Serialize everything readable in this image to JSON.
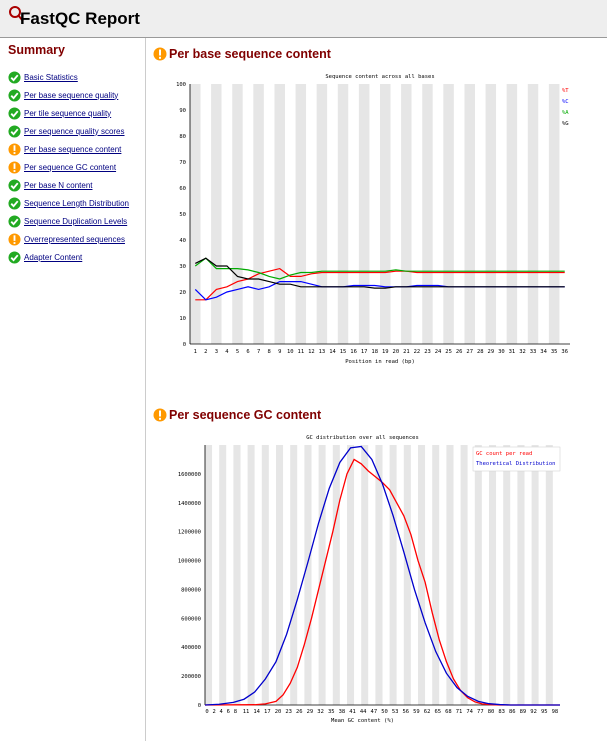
{
  "app": {
    "title": "FastQC Report"
  },
  "sidebar": {
    "title": "Summary",
    "items": [
      {
        "label": "Basic Statistics",
        "status": "pass"
      },
      {
        "label": "Per base sequence quality",
        "status": "pass"
      },
      {
        "label": "Per tile sequence quality",
        "status": "pass"
      },
      {
        "label": "Per sequence quality scores",
        "status": "pass"
      },
      {
        "label": "Per base sequence content",
        "status": "warn"
      },
      {
        "label": "Per sequence GC content",
        "status": "warn"
      },
      {
        "label": "Per base N content",
        "status": "pass"
      },
      {
        "label": "Sequence Length Distribution",
        "status": "pass"
      },
      {
        "label": "Sequence Duplication Levels",
        "status": "pass"
      },
      {
        "label": "Overrepresented sequences",
        "status": "warn"
      },
      {
        "label": "Adapter Content",
        "status": "pass"
      }
    ]
  },
  "colors": {
    "pass": "#22aa22",
    "warn": "#ff9900",
    "heading": "#800000",
    "link": "#000080"
  },
  "sections": [
    {
      "title": "Per base sequence content",
      "status": "warn",
      "icon": "warning-icon"
    },
    {
      "title": "Per sequence GC content",
      "status": "warn",
      "icon": "warning-icon"
    }
  ],
  "chart_data": [
    {
      "type": "line",
      "title": "Sequence content across all bases",
      "xlabel": "Position in read (bp)",
      "ylabel": "",
      "ylim": [
        0,
        100
      ],
      "yticks": [
        0,
        10,
        20,
        30,
        40,
        50,
        60,
        70,
        80,
        90,
        100
      ],
      "x": [
        "1",
        "2",
        "3",
        "4",
        "5",
        "6",
        "7",
        "8",
        "9",
        "10",
        "11",
        "12",
        "13",
        "14",
        "15",
        "16",
        "17",
        "18",
        "19",
        "20",
        "21",
        "22",
        "23",
        "24",
        "25",
        "26",
        "27",
        "28",
        "29",
        "30",
        "31",
        "32",
        "33",
        "34",
        "35",
        "36"
      ],
      "grid": "alternating vertical bands",
      "legend": "top-right",
      "series": [
        {
          "name": "%T",
          "color": "#ff0000",
          "values": [
            17,
            17,
            21,
            22,
            24,
            25,
            27,
            28,
            29,
            26,
            26,
            27,
            27.5,
            27.5,
            27.5,
            27.5,
            27.5,
            27.5,
            27.5,
            28,
            28,
            27.5,
            27.5,
            27.5,
            27.5,
            27.5,
            27.5,
            27.5,
            27.5,
            27.5,
            27.5,
            27.5,
            27.5,
            27.5,
            27.5,
            27.5
          ]
        },
        {
          "name": "%C",
          "color": "#0000ff",
          "values": [
            21,
            17,
            18,
            20,
            21,
            22,
            21,
            22,
            24,
            24,
            24,
            23,
            22,
            22,
            22,
            22.5,
            22.5,
            22.5,
            22,
            22,
            22,
            22.5,
            22.5,
            22.5,
            22,
            22,
            22,
            22,
            22,
            22,
            22,
            22,
            22,
            22,
            22,
            22
          ]
        },
        {
          "name": "%A",
          "color": "#00aa00",
          "values": [
            30,
            33,
            29,
            29,
            29,
            28.5,
            27.5,
            26,
            25,
            26.5,
            27.5,
            27.5,
            28,
            28,
            28,
            28,
            28,
            28,
            28,
            28.5,
            28,
            28,
            28,
            28,
            28,
            28,
            28,
            28,
            28,
            28,
            28,
            28,
            28,
            28,
            28,
            28
          ]
        },
        {
          "name": "%G",
          "color": "#000000",
          "values": [
            31,
            33,
            30,
            30,
            26,
            25,
            25,
            24,
            23,
            23,
            22,
            22,
            22,
            22,
            22,
            22,
            22,
            21.5,
            21.5,
            22,
            22,
            22,
            22,
            22,
            22,
            22,
            22,
            22,
            22,
            22,
            22,
            22,
            22,
            22,
            22,
            22
          ]
        }
      ]
    },
    {
      "type": "line",
      "title": "GC distribution over all sequences",
      "xlabel": "Mean GC content (%)",
      "ylabel": "",
      "ylim": [
        0,
        1800000
      ],
      "yticks": [
        0,
        200000,
        400000,
        600000,
        800000,
        1000000,
        1200000,
        1400000,
        1600000
      ],
      "xticks": [
        "0",
        "2",
        "4",
        "6",
        "8",
        "11",
        "14",
        "17",
        "20",
        "23",
        "26",
        "29",
        "32",
        "35",
        "38",
        "41",
        "44",
        "47",
        "50",
        "53",
        "56",
        "59",
        "62",
        "65",
        "68",
        "71",
        "74",
        "77",
        "80",
        "83",
        "86",
        "89",
        "92",
        "95",
        "98"
      ],
      "grid": "alternating vertical bands",
      "legend": "top-right",
      "series": [
        {
          "name": "GC count per read",
          "color": "#ff0000",
          "points": [
            [
              0,
              0
            ],
            [
              14,
              2000
            ],
            [
              17,
              8000
            ],
            [
              20,
              25000
            ],
            [
              22,
              70000
            ],
            [
              24,
              150000
            ],
            [
              26,
              260000
            ],
            [
              28,
              420000
            ],
            [
              30,
              600000
            ],
            [
              32,
              800000
            ],
            [
              34,
              1000000
            ],
            [
              36,
              1200000
            ],
            [
              38,
              1420000
            ],
            [
              40,
              1600000
            ],
            [
              42,
              1700000
            ],
            [
              44,
              1670000
            ],
            [
              46,
              1620000
            ],
            [
              48,
              1580000
            ],
            [
              50,
              1540000
            ],
            [
              52,
              1490000
            ],
            [
              54,
              1400000
            ],
            [
              56,
              1310000
            ],
            [
              58,
              1180000
            ],
            [
              60,
              1000000
            ],
            [
              62,
              850000
            ],
            [
              64,
              640000
            ],
            [
              66,
              450000
            ],
            [
              68,
              300000
            ],
            [
              70,
              180000
            ],
            [
              72,
              100000
            ],
            [
              74,
              50000
            ],
            [
              76,
              22000
            ],
            [
              78,
              8000
            ],
            [
              80,
              3000
            ],
            [
              83,
              0
            ],
            [
              100,
              0
            ]
          ]
        },
        {
          "name": "Theoretical Distribution",
          "color": "#0000cc",
          "points": [
            [
              0,
              0
            ],
            [
              4,
              5000
            ],
            [
              8,
              18000
            ],
            [
              11,
              40000
            ],
            [
              14,
              90000
            ],
            [
              17,
              180000
            ],
            [
              20,
              300000
            ],
            [
              23,
              490000
            ],
            [
              26,
              730000
            ],
            [
              29,
              990000
            ],
            [
              32,
              1260000
            ],
            [
              35,
              1500000
            ],
            [
              38,
              1680000
            ],
            [
              41,
              1780000
            ],
            [
              44,
              1790000
            ],
            [
              47,
              1700000
            ],
            [
              50,
              1530000
            ],
            [
              53,
              1310000
            ],
            [
              56,
              1060000
            ],
            [
              59,
              800000
            ],
            [
              62,
              570000
            ],
            [
              65,
              370000
            ],
            [
              68,
              220000
            ],
            [
              71,
              120000
            ],
            [
              74,
              60000
            ],
            [
              77,
              25000
            ],
            [
              80,
              9000
            ],
            [
              83,
              3000
            ],
            [
              86,
              0
            ],
            [
              100,
              0
            ]
          ]
        }
      ]
    }
  ]
}
